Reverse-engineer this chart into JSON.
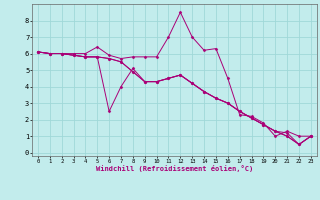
{
  "xlabel": "Windchill (Refroidissement éolien,°C)",
  "background_color": "#c2ecec",
  "grid_color": "#a0d8d8",
  "line_color": "#aa0077",
  "xlim": [
    -0.5,
    23.5
  ],
  "ylim": [
    -0.2,
    9.0
  ],
  "xticks": [
    0,
    1,
    2,
    3,
    4,
    5,
    6,
    7,
    8,
    9,
    10,
    11,
    12,
    13,
    14,
    15,
    16,
    17,
    18,
    19,
    20,
    21,
    22,
    23
  ],
  "yticks": [
    0,
    1,
    2,
    3,
    4,
    5,
    6,
    7,
    8
  ],
  "lines": [
    [
      6.1,
      6.0,
      6.0,
      6.0,
      6.0,
      6.4,
      5.9,
      5.7,
      5.8,
      5.8,
      5.8,
      7.0,
      8.5,
      7.0,
      6.2,
      6.3,
      4.5,
      2.3,
      2.2,
      1.8,
      1.0,
      1.3,
      1.0,
      1.0
    ],
    [
      6.1,
      6.0,
      6.0,
      5.9,
      5.8,
      5.8,
      2.5,
      4.0,
      5.1,
      4.3,
      4.3,
      4.5,
      4.7,
      4.2,
      3.7,
      3.3,
      3.0,
      2.5,
      2.1,
      1.7,
      1.3,
      1.0,
      0.5,
      1.0
    ],
    [
      6.1,
      6.0,
      6.0,
      5.9,
      5.8,
      5.8,
      5.7,
      5.5,
      4.9,
      4.3,
      4.3,
      4.5,
      4.7,
      4.2,
      3.7,
      3.3,
      3.0,
      2.5,
      2.1,
      1.7,
      1.3,
      1.0,
      0.5,
      1.0
    ],
    [
      6.1,
      6.0,
      6.0,
      5.9,
      5.8,
      5.8,
      5.7,
      5.5,
      4.9,
      4.3,
      4.3,
      4.5,
      4.7,
      4.2,
      3.7,
      3.3,
      3.0,
      2.5,
      2.1,
      1.7,
      1.3,
      1.2,
      0.5,
      1.0
    ]
  ],
  "figsize": [
    3.2,
    2.0
  ],
  "dpi": 100
}
